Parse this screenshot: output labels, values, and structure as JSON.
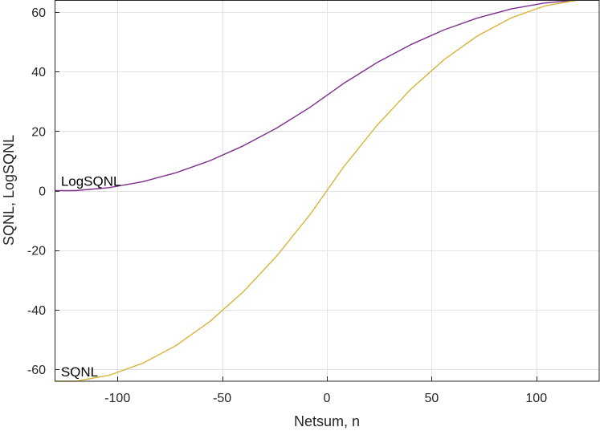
{
  "chart_data": {
    "type": "line",
    "xlabel": "Netsum, n",
    "ylabel": "SQNL, LogSQNL",
    "xlim": [
      -130,
      130
    ],
    "ylim": [
      -64,
      64
    ],
    "xticks": [
      -100,
      -50,
      0,
      50,
      100
    ],
    "yticks": [
      -60,
      -40,
      -20,
      0,
      20,
      40,
      60
    ],
    "grid": true,
    "series": [
      {
        "name": "LogSQNL",
        "color": "#7e2f8e",
        "x": [
          -130,
          -120,
          -104,
          -88,
          -72,
          -56,
          -40,
          -24,
          -8,
          8,
          24,
          40,
          56,
          72,
          88,
          104,
          120,
          130
        ],
        "y": [
          0,
          0,
          1,
          3,
          6,
          10,
          15,
          21,
          28,
          36,
          43,
          49,
          54,
          58,
          61,
          63,
          64,
          64
        ]
      },
      {
        "name": "SQNL",
        "color": "#d9b43b",
        "x": [
          -130,
          -120,
          -104,
          -88,
          -72,
          -56,
          -40,
          -24,
          -8,
          8,
          24,
          40,
          56,
          72,
          88,
          104,
          120,
          130
        ],
        "y": [
          -64,
          -64,
          -62,
          -58,
          -52,
          -44,
          -34,
          -22,
          -8,
          8,
          22,
          34,
          44,
          52,
          58,
          62,
          64,
          64
        ]
      }
    ],
    "annotations": [
      {
        "text": "LogSQNL",
        "x": -127,
        "y": 3
      },
      {
        "text": "SQNL",
        "x": -127,
        "y": -61
      }
    ]
  }
}
